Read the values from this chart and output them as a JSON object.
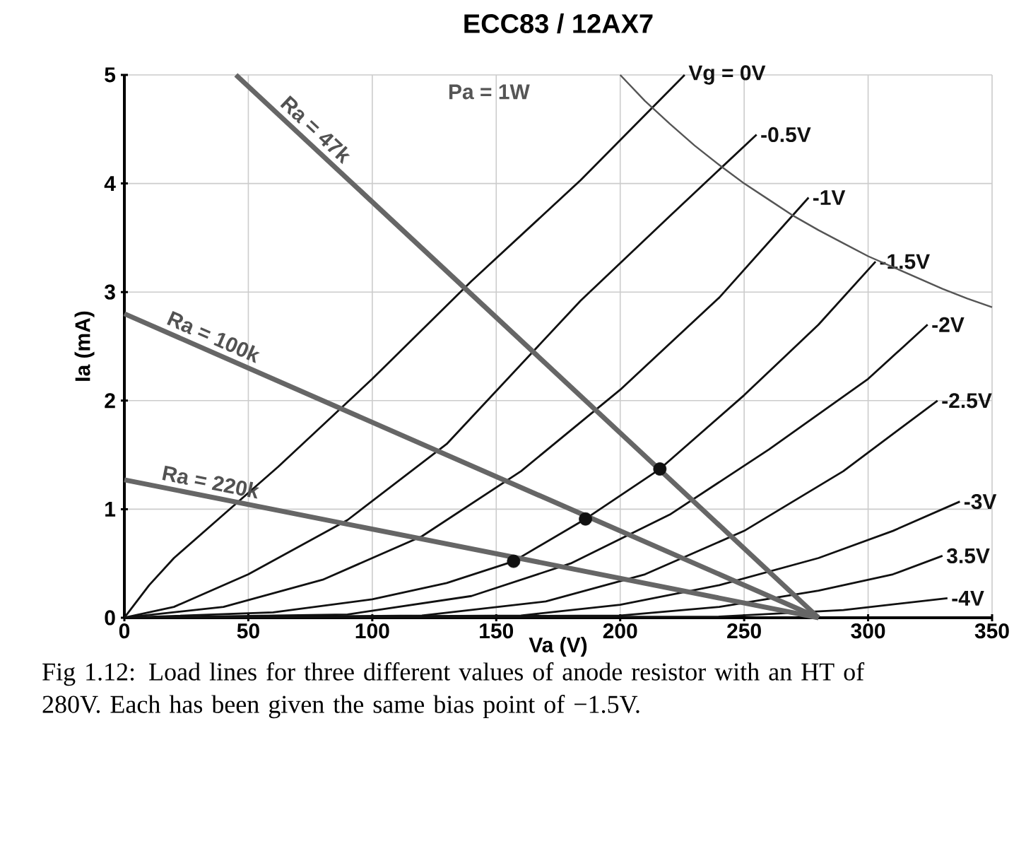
{
  "chart_data": {
    "type": "line",
    "title": "ECC83 / 12AX7",
    "xlabel": "Va (V)",
    "ylabel": "Ia (mA)",
    "xlim": [
      0,
      350
    ],
    "ylim": [
      0,
      5
    ],
    "xticks": [
      0,
      50,
      100,
      150,
      200,
      250,
      300,
      350
    ],
    "yticks": [
      0,
      1,
      2,
      3,
      4,
      5
    ],
    "grid": true,
    "series": [
      {
        "name": "Vg = 0V",
        "color": "#111111",
        "x": [
          0,
          10,
          20,
          40,
          62,
          100,
          140,
          184,
          226
        ],
        "values": [
          0,
          0.3,
          0.55,
          0.95,
          1.39,
          2.2,
          3.1,
          4.03,
          5
        ]
      },
      {
        "name": "-0.5V",
        "color": "#111111",
        "x": [
          0,
          20,
          50,
          90,
          130,
          184,
          220,
          255
        ],
        "values": [
          0,
          0.1,
          0.4,
          0.9,
          1.6,
          2.92,
          3.7,
          4.45
        ]
      },
      {
        "name": "-1V",
        "color": "#111111",
        "x": [
          0,
          40,
          80,
          120,
          160,
          200,
          240,
          276
        ],
        "values": [
          0,
          0.1,
          0.35,
          0.75,
          1.35,
          2.1,
          2.95,
          3.87
        ]
      },
      {
        "name": "-1.5V",
        "color": "#111111",
        "x": [
          0,
          60,
          100,
          130,
          157,
          186,
          216,
          250,
          280,
          303
        ],
        "values": [
          0,
          0.05,
          0.17,
          0.32,
          0.52,
          0.91,
          1.37,
          2.05,
          2.7,
          3.28
        ]
      },
      {
        "name": "-2V",
        "color": "#111111",
        "x": [
          0,
          90,
          140,
          180,
          220,
          260,
          300,
          324
        ],
        "values": [
          0,
          0.03,
          0.2,
          0.5,
          0.95,
          1.55,
          2.2,
          2.7
        ]
      },
      {
        "name": "-2.5V",
        "color": "#111111",
        "x": [
          0,
          120,
          170,
          210,
          250,
          290,
          328
        ],
        "values": [
          0,
          0.02,
          0.15,
          0.4,
          0.8,
          1.35,
          2.0
        ]
      },
      {
        "name": "-3V",
        "color": "#111111",
        "x": [
          0,
          160,
          200,
          240,
          280,
          310,
          337
        ],
        "values": [
          0,
          0.02,
          0.12,
          0.3,
          0.55,
          0.8,
          1.07
        ]
      },
      {
        "name": "3.5V",
        "color": "#111111",
        "x": [
          0,
          200,
          240,
          280,
          310,
          330
        ],
        "values": [
          0,
          0.02,
          0.1,
          0.25,
          0.4,
          0.57
        ]
      },
      {
        "name": "-4V",
        "color": "#111111",
        "x": [
          0,
          240,
          290,
          332
        ],
        "values": [
          0,
          0.01,
          0.07,
          0.18
        ]
      },
      {
        "name": "Pa = 1W",
        "color": "#555555",
        "x": [
          200,
          210,
          220,
          230,
          240,
          250,
          260,
          270,
          280,
          290,
          300,
          310,
          320,
          330,
          340,
          350
        ],
        "values": [
          5,
          4.76,
          4.55,
          4.35,
          4.17,
          4,
          3.85,
          3.7,
          3.57,
          3.45,
          3.33,
          3.23,
          3.13,
          3.03,
          2.94,
          2.86
        ]
      },
      {
        "name": "Ra = 47k",
        "color": "#666666",
        "x": [
          45,
          280
        ],
        "values": [
          5,
          0
        ]
      },
      {
        "name": "Ra = 100k",
        "color": "#666666",
        "x": [
          0,
          280
        ],
        "values": [
          2.8,
          0
        ]
      },
      {
        "name": "Ra = 220k",
        "color": "#666666",
        "x": [
          0,
          280
        ],
        "values": [
          1.27,
          0
        ]
      },
      {
        "type": "scatter",
        "marker": "circle",
        "color": "#111111",
        "x": [
          157,
          186,
          216
        ],
        "values": [
          0.52,
          0.91,
          1.37
        ]
      }
    ],
    "annotations": [
      "Fig 1.12: Load lines for three different values of anode resistor with an HT of 280V. Each has been given the same bias point of −1.5V."
    ]
  }
}
